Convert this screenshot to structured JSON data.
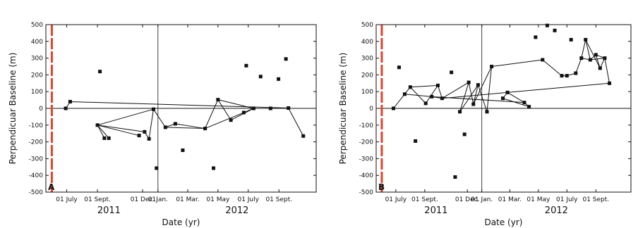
{
  "chart_data": [
    {
      "panel": "A",
      "type": "scatter",
      "xlabel": "Date (yr)",
      "ylabel": "Perpendicuar Baseline (m)",
      "ylim": [
        -500,
        500
      ],
      "yticks": [
        -500,
        -400,
        -300,
        -200,
        -100,
        0,
        100,
        200,
        300,
        400,
        500
      ],
      "x_tick_dates": [
        "2011-07-01",
        "2011-09-01",
        "2011-12-01",
        "2012-01-01",
        "2012-03-01",
        "2012-05-01",
        "2012-07-01",
        "2012-09-01"
      ],
      "x_tick_labels": [
        "01 July",
        "01 Sept.",
        "01 Dec.",
        "01Jan.",
        "01 Mar.",
        "01 May",
        "01 July",
        "01 Sept."
      ],
      "year_labels": [
        "2011",
        "2012"
      ],
      "xlim": [
        "2011-05-20",
        "2012-11-15"
      ],
      "year_divider": "2012-01-01",
      "reference_marker": "2011-06-01",
      "points": [
        {
          "id": "a0",
          "date": "2011-06-29",
          "b": 0
        },
        {
          "id": "a1",
          "date": "2011-07-08",
          "b": 40
        },
        {
          "id": "a2",
          "date": "2011-09-01",
          "b": -100
        },
        {
          "id": "a3",
          "date": "2011-09-06",
          "b": 220
        },
        {
          "id": "a4",
          "date": "2011-09-15",
          "b": -178
        },
        {
          "id": "a5",
          "date": "2011-09-24",
          "b": -178
        },
        {
          "id": "a6",
          "date": "2011-11-24",
          "b": -162
        },
        {
          "id": "a7",
          "date": "2011-12-05",
          "b": -140
        },
        {
          "id": "a8",
          "date": "2011-12-14",
          "b": -182
        },
        {
          "id": "a9",
          "date": "2011-12-23",
          "b": -5
        },
        {
          "id": "a10",
          "date": "2011-12-29",
          "b": -357
        },
        {
          "id": "a11",
          "date": "2012-01-16",
          "b": -113
        },
        {
          "id": "a12",
          "date": "2012-02-05",
          "b": -92
        },
        {
          "id": "a13",
          "date": "2012-02-20",
          "b": -250
        },
        {
          "id": "a14",
          "date": "2012-04-05",
          "b": -120
        },
        {
          "id": "a15",
          "date": "2012-04-22",
          "b": -357
        },
        {
          "id": "a16",
          "date": "2012-05-01",
          "b": 52
        },
        {
          "id": "a17",
          "date": "2012-05-27",
          "b": -70
        },
        {
          "id": "a18",
          "date": "2012-06-22",
          "b": -25
        },
        {
          "id": "a19",
          "date": "2012-06-27",
          "b": 255
        },
        {
          "id": "a20",
          "date": "2012-07-12",
          "b": 0
        },
        {
          "id": "a21",
          "date": "2012-07-26",
          "b": 190
        },
        {
          "id": "a22",
          "date": "2012-08-15",
          "b": 0
        },
        {
          "id": "a23",
          "date": "2012-08-31",
          "b": 175
        },
        {
          "id": "a24",
          "date": "2012-09-15",
          "b": 295
        },
        {
          "id": "a25",
          "date": "2012-09-20",
          "b": 2
        },
        {
          "id": "a26",
          "date": "2012-10-20",
          "b": -165
        }
      ],
      "edges": [
        [
          "a0",
          "a1"
        ],
        [
          "a1",
          "a25"
        ],
        [
          "a2",
          "a4"
        ],
        [
          "a2",
          "a5"
        ],
        [
          "a2",
          "a6"
        ],
        [
          "a2",
          "a7"
        ],
        [
          "a2",
          "a9"
        ],
        [
          "a7",
          "a8"
        ],
        [
          "a8",
          "a9"
        ],
        [
          "a9",
          "a11"
        ],
        [
          "a11",
          "a12"
        ],
        [
          "a12",
          "a14"
        ],
        [
          "a11",
          "a14"
        ],
        [
          "a14",
          "a16"
        ],
        [
          "a14",
          "a18"
        ],
        [
          "a16",
          "a17"
        ],
        [
          "a16",
          "a20"
        ],
        [
          "a17",
          "a20"
        ],
        [
          "a18",
          "a20"
        ],
        [
          "a20",
          "a22"
        ],
        [
          "a22",
          "a25"
        ],
        [
          "a25",
          "a26"
        ]
      ]
    },
    {
      "panel": "B",
      "type": "scatter",
      "xlabel": "Date (yr)",
      "ylabel": "Perpendicuar Baseline (m)",
      "ylim": [
        -500,
        500
      ],
      "yticks": [
        -500,
        -400,
        -300,
        -200,
        -100,
        0,
        100,
        200,
        300,
        400,
        500
      ],
      "x_tick_dates": [
        "2011-07-01",
        "2011-09-01",
        "2011-12-01",
        "2012-01-01",
        "2012-03-01",
        "2012-05-01",
        "2012-07-01",
        "2012-09-01"
      ],
      "x_tick_labels": [
        "01 July",
        "01 Sept.",
        "01 Dec.",
        "01 Jan.",
        "01 Mar.",
        "01 May",
        "01 July",
        "01 Sept."
      ],
      "year_labels": [
        "2011",
        "2012"
      ],
      "xlim": [
        "2011-05-20",
        "2012-11-15"
      ],
      "year_divider": "2012-01-01",
      "reference_marker": "2011-06-01",
      "points": [
        {
          "id": "b0",
          "date": "2011-06-26",
          "b": 0
        },
        {
          "id": "b1",
          "date": "2011-07-08",
          "b": 245
        },
        {
          "id": "b2",
          "date": "2011-07-20",
          "b": 85
        },
        {
          "id": "b3",
          "date": "2011-08-01",
          "b": 127
        },
        {
          "id": "b4",
          "date": "2011-08-12",
          "b": -195
        },
        {
          "id": "b5",
          "date": "2011-09-03",
          "b": 30
        },
        {
          "id": "b6",
          "date": "2011-09-16",
          "b": 70
        },
        {
          "id": "b7",
          "date": "2011-09-29",
          "b": 137
        },
        {
          "id": "b8",
          "date": "2011-10-08",
          "b": 60
        },
        {
          "id": "b9",
          "date": "2011-10-28",
          "b": 215
        },
        {
          "id": "b10",
          "date": "2011-11-05",
          "b": -410
        },
        {
          "id": "b11",
          "date": "2011-11-15",
          "b": -20
        },
        {
          "id": "b12",
          "date": "2011-11-25",
          "b": -155
        },
        {
          "id": "b13",
          "date": "2011-12-04",
          "b": 155
        },
        {
          "id": "b14",
          "date": "2011-12-14",
          "b": 25
        },
        {
          "id": "b15",
          "date": "2011-12-24",
          "b": 140
        },
        {
          "id": "b16",
          "date": "2012-01-12",
          "b": -20
        },
        {
          "id": "b17",
          "date": "2012-01-22",
          "b": 250
        },
        {
          "id": "b18",
          "date": "2012-02-15",
          "b": 60
        },
        {
          "id": "b19",
          "date": "2012-02-25",
          "b": 95
        },
        {
          "id": "b20",
          "date": "2012-04-01",
          "b": 35
        },
        {
          "id": "b21",
          "date": "2012-04-11",
          "b": 10
        },
        {
          "id": "b22",
          "date": "2012-04-25",
          "b": 425
        },
        {
          "id": "b23",
          "date": "2012-05-10",
          "b": 290
        },
        {
          "id": "b24",
          "date": "2012-05-20",
          "b": 495
        },
        {
          "id": "b25",
          "date": "2012-06-05",
          "b": 465
        },
        {
          "id": "b26",
          "date": "2012-06-20",
          "b": 195
        },
        {
          "id": "b27",
          "date": "2012-07-01",
          "b": 195
        },
        {
          "id": "b28",
          "date": "2012-07-10",
          "b": 410
        },
        {
          "id": "b29",
          "date": "2012-07-20",
          "b": 210
        },
        {
          "id": "b30",
          "date": "2012-08-01",
          "b": 300
        },
        {
          "id": "b31",
          "date": "2012-08-10",
          "b": 410
        },
        {
          "id": "b32",
          "date": "2012-08-20",
          "b": 290
        },
        {
          "id": "b33",
          "date": "2012-09-01",
          "b": 320
        },
        {
          "id": "b34",
          "date": "2012-09-10",
          "b": 240
        },
        {
          "id": "b35",
          "date": "2012-09-20",
          "b": 300
        },
        {
          "id": "b36",
          "date": "2012-09-30",
          "b": 150
        }
      ],
      "edges": [
        [
          "b0",
          "b2"
        ],
        [
          "b2",
          "b3"
        ],
        [
          "b2",
          "b6"
        ],
        [
          "b3",
          "b5"
        ],
        [
          "b3",
          "b7"
        ],
        [
          "b5",
          "b7"
        ],
        [
          "b6",
          "b8"
        ],
        [
          "b6",
          "b20"
        ],
        [
          "b7",
          "b8"
        ],
        [
          "b8",
          "b13"
        ],
        [
          "b8",
          "b36"
        ],
        [
          "b11",
          "b13"
        ],
        [
          "b11",
          "b15"
        ],
        [
          "b13",
          "b14"
        ],
        [
          "b14",
          "b15"
        ],
        [
          "b14",
          "b17"
        ],
        [
          "b15",
          "b16"
        ],
        [
          "b16",
          "b17"
        ],
        [
          "b17",
          "b23"
        ],
        [
          "b18",
          "b19"
        ],
        [
          "b18",
          "b21"
        ],
        [
          "b19",
          "b20"
        ],
        [
          "b20",
          "b21"
        ],
        [
          "b23",
          "b26"
        ],
        [
          "b26",
          "b27"
        ],
        [
          "b27",
          "b29"
        ],
        [
          "b29",
          "b30"
        ],
        [
          "b30",
          "b31"
        ],
        [
          "b30",
          "b32"
        ],
        [
          "b31",
          "b32"
        ],
        [
          "b31",
          "b34"
        ],
        [
          "b32",
          "b33"
        ],
        [
          "b32",
          "b35"
        ],
        [
          "b33",
          "b34"
        ],
        [
          "b33",
          "b35"
        ],
        [
          "b34",
          "b35"
        ],
        [
          "b35",
          "b36"
        ]
      ]
    }
  ],
  "colors": {
    "axis": "#111111",
    "reference_marker": "#e0442c",
    "points": "#111111",
    "lines": "#111111"
  }
}
